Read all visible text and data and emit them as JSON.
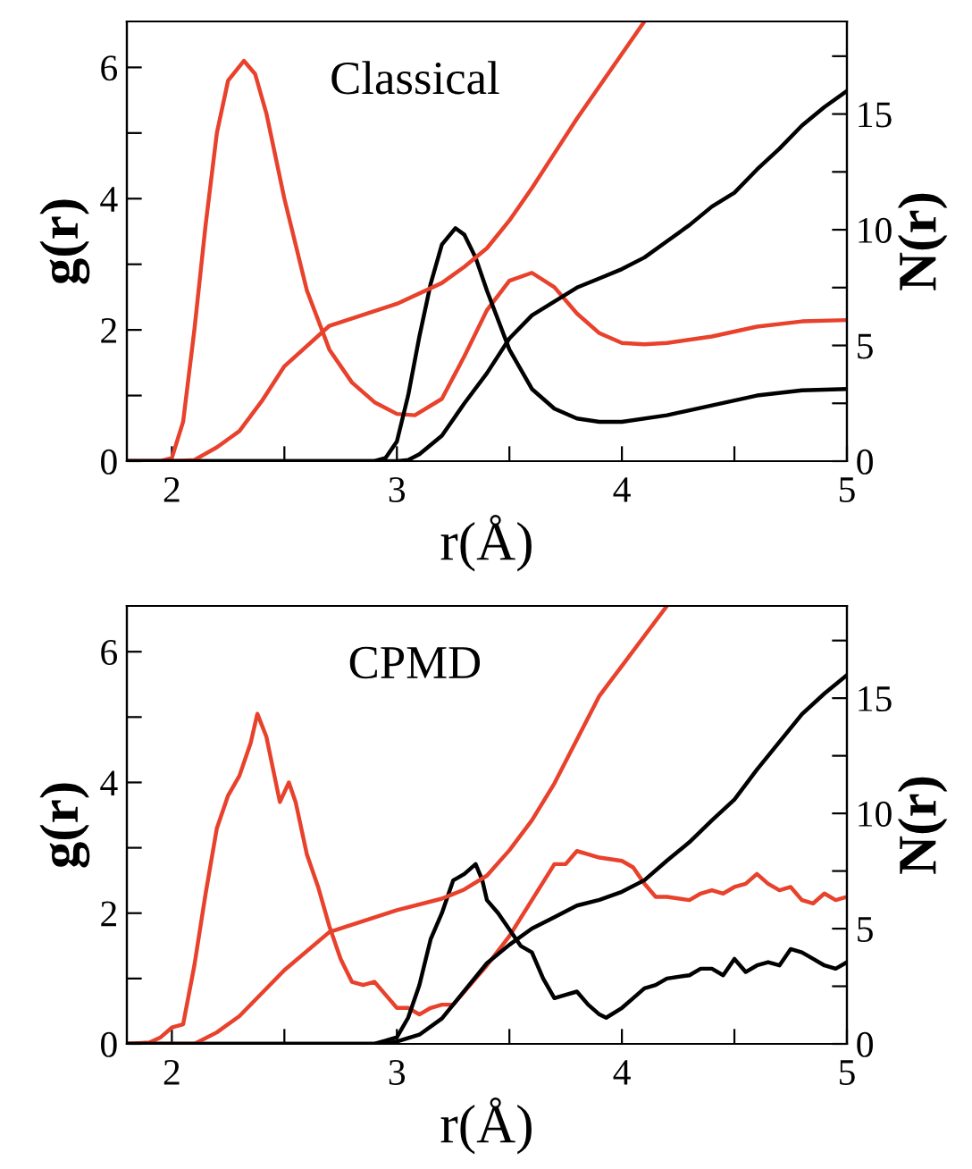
{
  "chart_data": [
    {
      "type": "line",
      "xlabel": "r(Å)",
      "ylabel": "g(r)",
      "y2label": "N(r)",
      "annotations": [
        "Classical"
      ],
      "xlim": [
        1.8,
        5
      ],
      "xticks": [
        2,
        {
          "value": 2.5,
          "label": null
        },
        3,
        {
          "value": 3.5,
          "label": null
        },
        4,
        {
          "value": 4.5,
          "label": null
        },
        5
      ],
      "ylim": [
        0,
        6.7
      ],
      "yticks": [
        0,
        {
          "value": 1,
          "label": null
        },
        2,
        {
          "value": 3,
          "label": null
        },
        4,
        {
          "value": 5,
          "label": null
        },
        6
      ],
      "y2lim": [
        0,
        19
      ],
      "y2ticks": [
        0,
        {
          "value": 2.5,
          "label": null
        },
        5,
        {
          "value": 7.5,
          "label": null
        },
        10,
        {
          "value": 12.5,
          "label": null
        },
        15,
        {
          "value": 17.5,
          "label": null
        }
      ],
      "series": [
        {
          "color": "#e8412c",
          "x": [
            1.8,
            1.95,
            2.0,
            2.05,
            2.1,
            2.15,
            2.2,
            2.25,
            2.32,
            2.37,
            2.42,
            2.5,
            2.6,
            2.7,
            2.8,
            2.9,
            3.0,
            3.08,
            3.2,
            3.3,
            3.4,
            3.5,
            3.6,
            3.7,
            3.8,
            3.9,
            4.0,
            4.1,
            4.2,
            4.4,
            4.6,
            4.8,
            5.0
          ],
          "values": [
            0,
            0,
            0.05,
            0.6,
            2.0,
            3.6,
            5.0,
            5.8,
            6.1,
            5.9,
            5.3,
            4.0,
            2.6,
            1.7,
            1.2,
            0.9,
            0.72,
            0.7,
            0.95,
            1.6,
            2.3,
            2.75,
            2.87,
            2.65,
            2.25,
            1.95,
            1.8,
            1.78,
            1.8,
            1.9,
            2.05,
            2.13,
            2.15
          ]
        },
        {
          "color": "#e8412c",
          "axis": "y2",
          "x": [
            1.8,
            2.0,
            2.1,
            2.2,
            2.3,
            2.4,
            2.5,
            2.7,
            3.0,
            3.2,
            3.3,
            3.4,
            3.5,
            3.6,
            3.7,
            3.8,
            3.9,
            4.0,
            4.1
          ],
          "values": [
            0,
            0,
            0.05,
            0.6,
            1.3,
            2.6,
            4.1,
            5.85,
            6.8,
            7.7,
            8.4,
            9.2,
            10.4,
            11.8,
            13.3,
            14.8,
            16.2,
            17.6,
            19.0
          ]
        },
        {
          "color": "#000000",
          "x": [
            1.8,
            2.9,
            2.95,
            3.0,
            3.05,
            3.1,
            3.15,
            3.2,
            3.26,
            3.3,
            3.35,
            3.4,
            3.5,
            3.6,
            3.7,
            3.8,
            3.9,
            4.0,
            4.2,
            4.4,
            4.6,
            4.8,
            5.0
          ],
          "values": [
            0,
            0,
            0.05,
            0.3,
            1.0,
            1.9,
            2.7,
            3.3,
            3.55,
            3.45,
            3.1,
            2.6,
            1.7,
            1.1,
            0.8,
            0.65,
            0.6,
            0.6,
            0.7,
            0.85,
            1.0,
            1.08,
            1.1
          ]
        },
        {
          "color": "#000000",
          "axis": "y2",
          "x": [
            1.8,
            3.0,
            3.05,
            3.1,
            3.2,
            3.3,
            3.4,
            3.5,
            3.6,
            3.7,
            3.8,
            3.9,
            4.0,
            4.1,
            4.2,
            4.3,
            4.4,
            4.5,
            4.6,
            4.7,
            4.8,
            4.9,
            5.0
          ],
          "values": [
            0,
            0,
            0.05,
            0.3,
            1.1,
            2.5,
            3.8,
            5.3,
            6.3,
            6.9,
            7.5,
            7.9,
            8.3,
            8.8,
            9.5,
            10.2,
            11.0,
            11.6,
            12.6,
            13.5,
            14.5,
            15.3,
            16.0
          ]
        }
      ]
    },
    {
      "type": "line",
      "xlabel": "r(Å)",
      "ylabel": "g(r)",
      "y2label": "N(r)",
      "annotations": [
        "CPMD"
      ],
      "xlim": [
        1.8,
        5
      ],
      "xticks": [
        2,
        {
          "value": 2.5,
          "label": null
        },
        3,
        {
          "value": 3.5,
          "label": null
        },
        4,
        {
          "value": 4.5,
          "label": null
        },
        5
      ],
      "ylim": [
        0,
        6.7
      ],
      "yticks": [
        0,
        {
          "value": 1,
          "label": null
        },
        2,
        {
          "value": 3,
          "label": null
        },
        4,
        {
          "value": 5,
          "label": null
        },
        6
      ],
      "y2lim": [
        0,
        19
      ],
      "y2ticks": [
        0,
        {
          "value": 2.5,
          "label": null
        },
        5,
        {
          "value": 7.5,
          "label": null
        },
        10,
        {
          "value": 12.5,
          "label": null
        },
        15,
        {
          "value": 17.5,
          "label": null
        }
      ],
      "series": [
        {
          "color": "#e8412c",
          "x": [
            1.8,
            1.9,
            1.95,
            2.0,
            2.05,
            2.1,
            2.15,
            2.2,
            2.25,
            2.3,
            2.35,
            2.38,
            2.42,
            2.45,
            2.48,
            2.52,
            2.55,
            2.6,
            2.65,
            2.7,
            2.75,
            2.8,
            2.85,
            2.9,
            2.95,
            3.0,
            3.05,
            3.1,
            3.15,
            3.2,
            3.25,
            3.3,
            3.35,
            3.4,
            3.5,
            3.6,
            3.7,
            3.75,
            3.8,
            3.85,
            3.9,
            4.0,
            4.05,
            4.1,
            4.15,
            4.2,
            4.3,
            4.35,
            4.4,
            4.45,
            4.5,
            4.55,
            4.6,
            4.65,
            4.7,
            4.75,
            4.8,
            4.85,
            4.9,
            4.95,
            5.0
          ],
          "values": [
            0,
            0.02,
            0.1,
            0.25,
            0.3,
            1.2,
            2.3,
            3.3,
            3.8,
            4.1,
            4.6,
            5.05,
            4.7,
            4.2,
            3.7,
            4.0,
            3.7,
            2.9,
            2.4,
            1.8,
            1.3,
            0.95,
            0.9,
            0.95,
            0.75,
            0.55,
            0.55,
            0.45,
            0.55,
            0.6,
            0.6,
            0.8,
            1.0,
            1.2,
            1.65,
            2.2,
            2.75,
            2.75,
            2.95,
            2.9,
            2.85,
            2.8,
            2.7,
            2.45,
            2.25,
            2.25,
            2.2,
            2.3,
            2.35,
            2.3,
            2.4,
            2.45,
            2.6,
            2.45,
            2.35,
            2.4,
            2.2,
            2.15,
            2.3,
            2.2,
            2.25
          ]
        },
        {
          "color": "#e8412c",
          "axis": "y2",
          "x": [
            1.8,
            2.1,
            2.2,
            2.3,
            2.4,
            2.5,
            2.7,
            3.0,
            3.2,
            3.3,
            3.4,
            3.5,
            3.6,
            3.7,
            3.8,
            3.9,
            4.0,
            4.1,
            4.2
          ],
          "values": [
            0,
            0,
            0.5,
            1.2,
            2.2,
            3.2,
            4.85,
            5.8,
            6.3,
            6.7,
            7.3,
            8.4,
            9.7,
            11.3,
            13.2,
            15.1,
            16.4,
            17.7,
            19.0
          ]
        },
        {
          "color": "#000000",
          "x": [
            1.8,
            2.9,
            2.95,
            3.0,
            3.05,
            3.1,
            3.15,
            3.2,
            3.25,
            3.3,
            3.35,
            3.38,
            3.4,
            3.45,
            3.5,
            3.55,
            3.6,
            3.65,
            3.7,
            3.75,
            3.8,
            3.85,
            3.9,
            3.93,
            4.0,
            4.05,
            4.1,
            4.15,
            4.2,
            4.3,
            4.35,
            4.4,
            4.45,
            4.5,
            4.55,
            4.6,
            4.65,
            4.7,
            4.75,
            4.8,
            4.85,
            4.9,
            4.95,
            5.0
          ],
          "values": [
            0,
            0,
            0.05,
            0.1,
            0.4,
            0.9,
            1.6,
            2.0,
            2.5,
            2.6,
            2.75,
            2.5,
            2.2,
            2.0,
            1.75,
            1.5,
            1.4,
            1.0,
            0.7,
            0.75,
            0.8,
            0.6,
            0.45,
            0.4,
            0.55,
            0.7,
            0.85,
            0.9,
            1.0,
            1.05,
            1.15,
            1.15,
            1.05,
            1.3,
            1.1,
            1.2,
            1.25,
            1.2,
            1.45,
            1.4,
            1.3,
            1.2,
            1.15,
            1.25
          ]
        },
        {
          "color": "#000000",
          "axis": "y2",
          "x": [
            1.8,
            2.95,
            3.0,
            3.1,
            3.2,
            3.3,
            3.4,
            3.5,
            3.6,
            3.7,
            3.8,
            3.9,
            4.0,
            4.1,
            4.2,
            4.3,
            4.4,
            4.5,
            4.6,
            4.7,
            4.8,
            4.9,
            5.0
          ],
          "values": [
            0,
            0,
            0.1,
            0.4,
            1.1,
            2.3,
            3.5,
            4.3,
            5.0,
            5.5,
            6.0,
            6.25,
            6.6,
            7.1,
            7.95,
            8.75,
            9.7,
            10.6,
            11.9,
            13.1,
            14.3,
            15.2,
            16.0
          ]
        }
      ]
    }
  ]
}
